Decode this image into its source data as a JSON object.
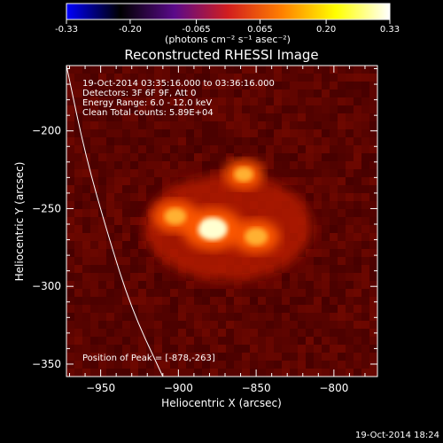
{
  "colorbar": {
    "tick_labels": [
      "-0.33",
      "-0.20",
      "-0.065",
      "0.065",
      "0.20",
      "0.33"
    ],
    "tick_values": [
      -0.33,
      -0.2,
      -0.065,
      0.065,
      0.2,
      0.33
    ],
    "unit_label": "(photons cm⁻² s⁻¹ asec⁻²)",
    "colors": [
      "#0000ff",
      "#000000",
      "#5a0a8a",
      "#d21e1e",
      "#ff8000",
      "#ffff00",
      "#ffffff"
    ]
  },
  "timestamp": "19-Oct-2014 18:24",
  "chart_data": {
    "type": "heatmap",
    "title": "Reconstructed RHESSI Image",
    "xlabel": "Heliocentric X (arcsec)",
    "ylabel": "Heliocentric Y (arcsec)",
    "xlim": [
      -972,
      -772
    ],
    "ylim": [
      -358,
      -158
    ],
    "x_ticks": [
      -950,
      -900,
      -850,
      -800
    ],
    "y_ticks": [
      -200,
      -250,
      -300,
      -350
    ],
    "x_tick_labels": [
      "−950",
      "−900",
      "−850",
      "−800"
    ],
    "y_tick_labels": [
      "−200",
      "−250",
      "−300",
      "−350"
    ],
    "info_lines": [
      "19-Oct-2014 03:35:16.000 to 03:36:16.000",
      "Detectors: 3F 6F 9F, Att 0",
      "Energy Range: 6.0 - 12.0 keV",
      "Clean     Total counts: 5.89E+04"
    ],
    "peak_label": "Position of Peak = [-878,-263]",
    "peak_position": [
      -878,
      -263
    ],
    "sources": [
      {
        "x": -878,
        "y": -263,
        "value": 0.33
      },
      {
        "x": -850,
        "y": -268,
        "value": 0.22
      },
      {
        "x": -902,
        "y": -255,
        "value": 0.2
      },
      {
        "x": -858,
        "y": -228,
        "value": 0.16
      }
    ],
    "limb_curve": [
      [
        -972,
        -158
      ],
      [
        -960,
        -215
      ],
      [
        -945,
        -268
      ],
      [
        -930,
        -315
      ],
      [
        -910,
        -358
      ]
    ]
  }
}
